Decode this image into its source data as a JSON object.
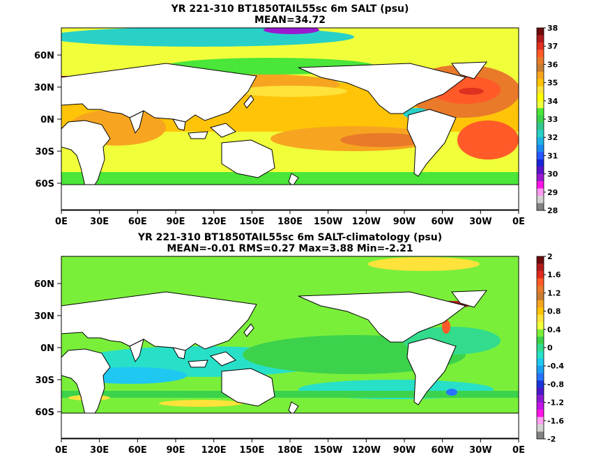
{
  "chart_data": [
    {
      "type": "heatmap",
      "title": "YR 221-310 BT1850TAIL55sc 6m SALT (psu)",
      "subtitle": "MEAN=34.72",
      "x_ticks": [
        "0E",
        "30E",
        "60E",
        "90E",
        "120E",
        "150E",
        "180E",
        "150W",
        "120W",
        "90W",
        "60W",
        "30W",
        "0E"
      ],
      "y_ticks": [
        "60N",
        "30N",
        "0N",
        "30S",
        "60S"
      ],
      "colorbar": {
        "labels": [
          "38",
          "37",
          "36",
          "35",
          "34",
          "33",
          "32",
          "31",
          "30",
          "29",
          "28"
        ],
        "colors": [
          "#6e0b0b",
          "#b01c1c",
          "#e03020",
          "#ff5a28",
          "#e87a2a",
          "#c87c32",
          "#f7a520",
          "#ffc408",
          "#ffe23a",
          "#ffff00",
          "#f0ff3a",
          "#4ae63a",
          "#3cd24c",
          "#32c88c",
          "#28d0c8",
          "#1eb0e6",
          "#1a8af2",
          "#2856ff",
          "#1a24d8",
          "#5a14c8",
          "#9a1ad2",
          "#ff14e8",
          "#ff9af0",
          "#d2d2d2",
          "#828282"
        ]
      },
      "mean": 34.72
    },
    {
      "type": "heatmap",
      "title": "YR 221-310 BT1850TAIL55sc 6m SALT-climatology (psu)",
      "subtitle": "MEAN=-0.01   RMS=0.27   Max=3.88   Min=-2.21",
      "x_ticks": [
        "0E",
        "30E",
        "60E",
        "90E",
        "120E",
        "150E",
        "180E",
        "150W",
        "120W",
        "90W",
        "60W",
        "30W",
        "0E"
      ],
      "y_ticks": [
        "60N",
        "30N",
        "0N",
        "30S",
        "60S"
      ],
      "colorbar": {
        "labels": [
          "2",
          "1.6",
          "1.2",
          "0.8",
          "0.4",
          "0",
          "-0.4",
          "-0.8",
          "-1.2",
          "-1.6",
          "-2"
        ],
        "colors": [
          "#6e0b0b",
          "#b01c1c",
          "#e02a1e",
          "#ff5a28",
          "#e87a2a",
          "#c87c32",
          "#f7a520",
          "#ffc408",
          "#ffe23a",
          "#f0ff3a",
          "#7aef3a",
          "#3cd24c",
          "#32dc8c",
          "#28e0c8",
          "#1ec8f0",
          "#1aa0f2",
          "#2872ff",
          "#1a34d8",
          "#4a18c8",
          "#8a1ad2",
          "#c214e8",
          "#ff14e8",
          "#ffa0f0",
          "#d2d2d2",
          "#828282"
        ]
      },
      "mean": -0.01,
      "rms": 0.27,
      "max": 3.88,
      "min": -2.21
    }
  ]
}
